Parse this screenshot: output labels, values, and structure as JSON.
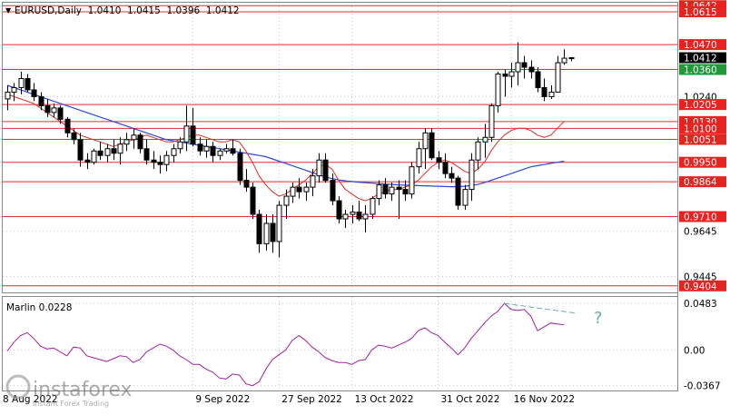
{
  "header": {
    "arrow": "▼",
    "symbol_line": "EURUSD,Daily  1.0410  1.0415  1.0396  1.0412"
  },
  "colors": {
    "bull": "#ffffff",
    "bear": "#000000",
    "level_line": "#e03030",
    "support_line": "#2e8b2e",
    "ma_fast": "#e02a2a",
    "ma_slow": "#2a49d8",
    "oscillator": "#a020a0",
    "divergence": "#6aaab0",
    "price_tag_red": "#e8231f",
    "price_tag_black": "#000000",
    "price_tag_green": "#1f9a3a",
    "grid": "#c8c8c8"
  },
  "price_axis": {
    "min": 0.9375,
    "max": 1.0655,
    "labels": [
      "1.0240",
      "0.9645",
      "0.9445"
    ],
    "plain_values": [
      1.024,
      0.9645,
      0.9445
    ]
  },
  "levels": [
    {
      "label": "1.0642",
      "value": 1.0642,
      "tag": "red"
    },
    {
      "label": "1.0615",
      "value": 1.0615,
      "tag": "red"
    },
    {
      "label": "1.0470",
      "value": 1.047,
      "tag": "red"
    },
    {
      "label": "1.0205",
      "value": 1.0205,
      "tag": "red"
    },
    {
      "label": "1.0130",
      "value": 1.013,
      "tag": "red"
    },
    {
      "label": "1.0100",
      "value": 1.01,
      "tag": "red"
    },
    {
      "label": "1.0051",
      "value": 1.0051,
      "tag": "red"
    },
    {
      "label": "0.9950",
      "value": 0.995,
      "tag": "red"
    },
    {
      "label": "0.9864",
      "value": 0.9864,
      "tag": "red"
    },
    {
      "label": "0.9710",
      "value": 0.971,
      "tag": "red"
    },
    {
      "label": "0.9404",
      "value": 0.9404,
      "tag": "red"
    }
  ],
  "support_level": {
    "label": "1.0360",
    "value": 1.036
  },
  "current_price": {
    "label": "1.0412",
    "value": 1.0412
  },
  "x_axis": {
    "labels": [
      "9 Sep 2022",
      "27 Sep 2022",
      "13 Oct 2022",
      "31 Oct 2022",
      "16 Nov 2022"
    ],
    "label_bar_index": [
      28,
      41,
      52,
      65,
      76
    ]
  },
  "oscillator": {
    "title": "Marlin 0.0228",
    "min": -0.042,
    "max": 0.055,
    "labels": [
      "0.0483",
      "0.00",
      "-0.0367"
    ],
    "label_values": [
      0.0483,
      0.0,
      -0.0367
    ],
    "question_mark": "?",
    "values": [
      -0.001,
      0.008,
      0.015,
      0.018,
      0.012,
      0.004,
      0.001,
      0.002,
      -0.002,
      -0.006,
      0.003,
      0.002,
      -0.006,
      -0.008,
      -0.01,
      -0.012,
      -0.009,
      -0.006,
      -0.007,
      -0.013,
      -0.01,
      -0.002,
      0.002,
      0.006,
      0.004,
      0.0,
      -0.006,
      -0.01,
      -0.015,
      -0.015,
      -0.02,
      -0.023,
      -0.029,
      -0.03,
      -0.025,
      -0.026,
      -0.035,
      -0.037,
      -0.033,
      -0.02,
      -0.01,
      -0.005,
      0.0,
      0.01,
      0.015,
      0.01,
      0.003,
      -0.002,
      -0.008,
      -0.011,
      -0.013,
      -0.013,
      -0.015,
      -0.011,
      -0.01,
      0.0,
      0.005,
      0.004,
      0.002,
      0.005,
      0.008,
      0.012,
      0.02,
      0.023,
      0.018,
      0.015,
      0.008,
      0.002,
      -0.005,
      0.002,
      0.012,
      0.02,
      0.028,
      0.035,
      0.04,
      0.0483,
      0.042,
      0.041,
      0.042,
      0.035,
      0.02,
      0.024,
      0.028,
      0.027,
      0.026
    ],
    "divergence_line": {
      "from_bar": 75,
      "to_bar": 86,
      "from_value": 0.0483,
      "to_value": 0.038
    }
  },
  "watermark": {
    "brand": "instaforex",
    "tagline": "Instant Forex Trading",
    "clipped_date": "8 Aug 2022"
  },
  "chart_data": {
    "type": "candlestick",
    "title": "EURUSD,Daily  1.0410  1.0415  1.0396  1.0412",
    "ohlc": [
      [
        1.023,
        1.029,
        1.018,
        1.026
      ],
      [
        1.026,
        1.03,
        1.022,
        1.028
      ],
      [
        1.028,
        1.035,
        1.025,
        1.032
      ],
      [
        1.032,
        1.034,
        1.026,
        1.027
      ],
      [
        1.027,
        1.03,
        1.022,
        1.024
      ],
      [
        1.024,
        1.026,
        1.018,
        1.02
      ],
      [
        1.02,
        1.023,
        1.015,
        1.017
      ],
      [
        1.017,
        1.021,
        1.015,
        1.019
      ],
      [
        1.019,
        1.02,
        1.012,
        1.014
      ],
      [
        1.014,
        1.015,
        1.006,
        1.008
      ],
      [
        1.008,
        1.01,
        1.003,
        1.005
      ],
      [
        1.005,
        1.008,
        0.993,
        0.996
      ],
      [
        0.996,
        0.999,
        0.992,
        0.995
      ],
      [
        0.995,
        1.001,
        0.994,
        1.0
      ],
      [
        1.0,
        1.004,
        0.996,
        0.998
      ],
      [
        0.998,
        1.003,
        0.995,
        1.001
      ],
      [
        1.001,
        1.005,
        0.996,
        0.999
      ],
      [
        0.999,
        1.006,
        0.994,
        1.003
      ],
      [
        1.003,
        1.008,
        1.0,
        1.005
      ],
      [
        1.005,
        1.01,
        1.001,
        1.007
      ],
      [
        1.007,
        1.008,
        0.999,
        1.001
      ],
      [
        1.001,
        1.005,
        0.994,
        0.996
      ],
      [
        0.996,
        1.0,
        0.992,
        0.995
      ],
      [
        0.995,
        0.998,
        0.99,
        0.994
      ],
      [
        0.994,
        1.0,
        0.991,
        0.998
      ],
      [
        0.998,
        1.003,
        0.995,
        1.001
      ],
      [
        1.001,
        1.006,
        0.999,
        1.004
      ],
      [
        1.004,
        1.02,
        1.0,
        1.011
      ],
      [
        1.011,
        1.019,
        1.002,
        1.003
      ],
      [
        1.003,
        1.006,
        0.998,
        1.0
      ],
      [
        1.0,
        1.005,
        0.997,
        1.002
      ],
      [
        1.002,
        1.004,
        0.995,
        0.998
      ],
      [
        0.998,
        1.001,
        0.996,
        1.0
      ],
      [
        1.0,
        1.003,
        0.999,
        1.001
      ],
      [
        1.001,
        1.005,
        0.998,
        0.999
      ],
      [
        0.999,
        1.001,
        0.985,
        0.987
      ],
      [
        0.987,
        0.992,
        0.982,
        0.984
      ],
      [
        0.984,
        0.986,
        0.97,
        0.972
      ],
      [
        0.972,
        0.974,
        0.955,
        0.959
      ],
      [
        0.959,
        0.972,
        0.956,
        0.968
      ],
      [
        0.968,
        0.972,
        0.955,
        0.96
      ],
      [
        0.96,
        0.978,
        0.953,
        0.976
      ],
      [
        0.976,
        0.983,
        0.97,
        0.98
      ],
      [
        0.98,
        0.986,
        0.977,
        0.984
      ],
      [
        0.984,
        0.988,
        0.979,
        0.982
      ],
      [
        0.982,
        0.986,
        0.978,
        0.984
      ],
      [
        0.984,
        0.992,
        0.98,
        0.989
      ],
      [
        0.989,
        0.999,
        0.986,
        0.996
      ],
      [
        0.996,
        0.999,
        0.986,
        0.987
      ],
      [
        0.987,
        0.99,
        0.976,
        0.978
      ],
      [
        0.978,
        0.98,
        0.968,
        0.97
      ],
      [
        0.97,
        0.974,
        0.966,
        0.972
      ],
      [
        0.972,
        0.976,
        0.968,
        0.973
      ],
      [
        0.973,
        0.978,
        0.969,
        0.97
      ],
      [
        0.97,
        0.976,
        0.964,
        0.972
      ],
      [
        0.972,
        0.98,
        0.97,
        0.979
      ],
      [
        0.979,
        0.987,
        0.976,
        0.985
      ],
      [
        0.985,
        0.988,
        0.979,
        0.981
      ],
      [
        0.981,
        0.986,
        0.978,
        0.984
      ],
      [
        0.984,
        0.987,
        0.97,
        0.983
      ],
      [
        0.983,
        0.987,
        0.978,
        0.981
      ],
      [
        0.981,
        0.995,
        0.979,
        0.993
      ],
      [
        0.993,
        1.004,
        0.99,
        1.001
      ],
      [
        1.001,
        1.01,
        0.992,
        1.008
      ],
      [
        1.008,
        1.01,
        0.996,
        0.997
      ],
      [
        0.997,
        1.0,
        0.992,
        0.995
      ],
      [
        0.995,
        0.999,
        0.988,
        0.99
      ],
      [
        0.99,
        0.993,
        0.986,
        0.988
      ],
      [
        0.988,
        0.989,
        0.974,
        0.976
      ],
      [
        0.976,
        0.985,
        0.974,
        0.983
      ],
      [
        0.983,
        0.999,
        0.978,
        0.996
      ],
      [
        0.996,
        1.006,
        0.992,
        1.004
      ],
      [
        1.004,
        1.012,
        0.997,
        1.006
      ],
      [
        1.006,
        1.021,
        1.004,
        1.02
      ],
      [
        1.02,
        1.035,
        1.017,
        1.034
      ],
      [
        1.034,
        1.036,
        1.024,
        1.033
      ],
      [
        1.033,
        1.039,
        1.028,
        1.035
      ],
      [
        1.035,
        1.048,
        1.029,
        1.039
      ],
      [
        1.039,
        1.042,
        1.032,
        1.037
      ],
      [
        1.037,
        1.04,
        1.032,
        1.035
      ],
      [
        1.035,
        1.037,
        1.026,
        1.028
      ],
      [
        1.028,
        1.032,
        1.022,
        1.024
      ],
      [
        1.024,
        1.029,
        1.023,
        1.026
      ],
      [
        1.026,
        1.042,
        1.026,
        1.039
      ],
      [
        1.039,
        1.045,
        1.038,
        1.041
      ],
      [
        1.041,
        1.0415,
        1.0396,
        1.0412
      ]
    ],
    "ma_fast": [
      1.025,
      1.024,
      1.023,
      1.022,
      1.021,
      1.019,
      1.017,
      1.015,
      1.013,
      1.011,
      1.009,
      1.007,
      1.006,
      1.005,
      1.004,
      1.003,
      1.002,
      1.003,
      1.004,
      1.005,
      1.006,
      1.007,
      1.006,
      1.005,
      1.004,
      1.004,
      1.005,
      1.006,
      1.007,
      1.007,
      1.006,
      1.005,
      1.004,
      1.004,
      1.005,
      1.004,
      1.0,
      0.995,
      0.989,
      0.985,
      0.982,
      0.98,
      0.981,
      0.983,
      0.985,
      0.987,
      0.99,
      0.993,
      0.994,
      0.992,
      0.987,
      0.983,
      0.981,
      0.979,
      0.978,
      0.979,
      0.981,
      0.982,
      0.983,
      0.983,
      0.984,
      0.985,
      0.987,
      0.99,
      0.993,
      0.995,
      0.996,
      0.995,
      0.993,
      0.991,
      0.99,
      0.992,
      0.995,
      1.0,
      1.004,
      1.007,
      1.009,
      1.01,
      1.01,
      1.009,
      1.007,
      1.006,
      1.007,
      1.01,
      1.013
    ],
    "ma_slow": [
      1.029,
      1.028,
      1.027,
      1.026,
      1.025,
      1.024,
      1.023,
      1.022,
      1.021,
      1.02,
      1.019,
      1.018,
      1.017,
      1.016,
      1.015,
      1.014,
      1.013,
      1.012,
      1.011,
      1.01,
      1.009,
      1.008,
      1.007,
      1.006,
      1.005,
      1.0045,
      1.004,
      1.0035,
      1.003,
      1.0025,
      1.002,
      1.0015,
      1.001,
      1.0005,
      1.0,
      0.9995,
      0.999,
      0.9985,
      0.998,
      0.9975,
      0.9965,
      0.9955,
      0.9945,
      0.9935,
      0.9925,
      0.9915,
      0.9905,
      0.9895,
      0.9885,
      0.9878,
      0.9872,
      0.9868,
      0.9865,
      0.9862,
      0.986,
      0.9858,
      0.9856,
      0.9854,
      0.9852,
      0.985,
      0.9849,
      0.9848,
      0.9847,
      0.9846,
      0.9845,
      0.9844,
      0.9843,
      0.9842,
      0.9842,
      0.9844,
      0.9847,
      0.9852,
      0.986,
      0.987,
      0.988,
      0.989,
      0.99,
      0.991,
      0.992,
      0.993,
      0.9935,
      0.994,
      0.9945,
      0.995,
      0.9955
    ]
  }
}
